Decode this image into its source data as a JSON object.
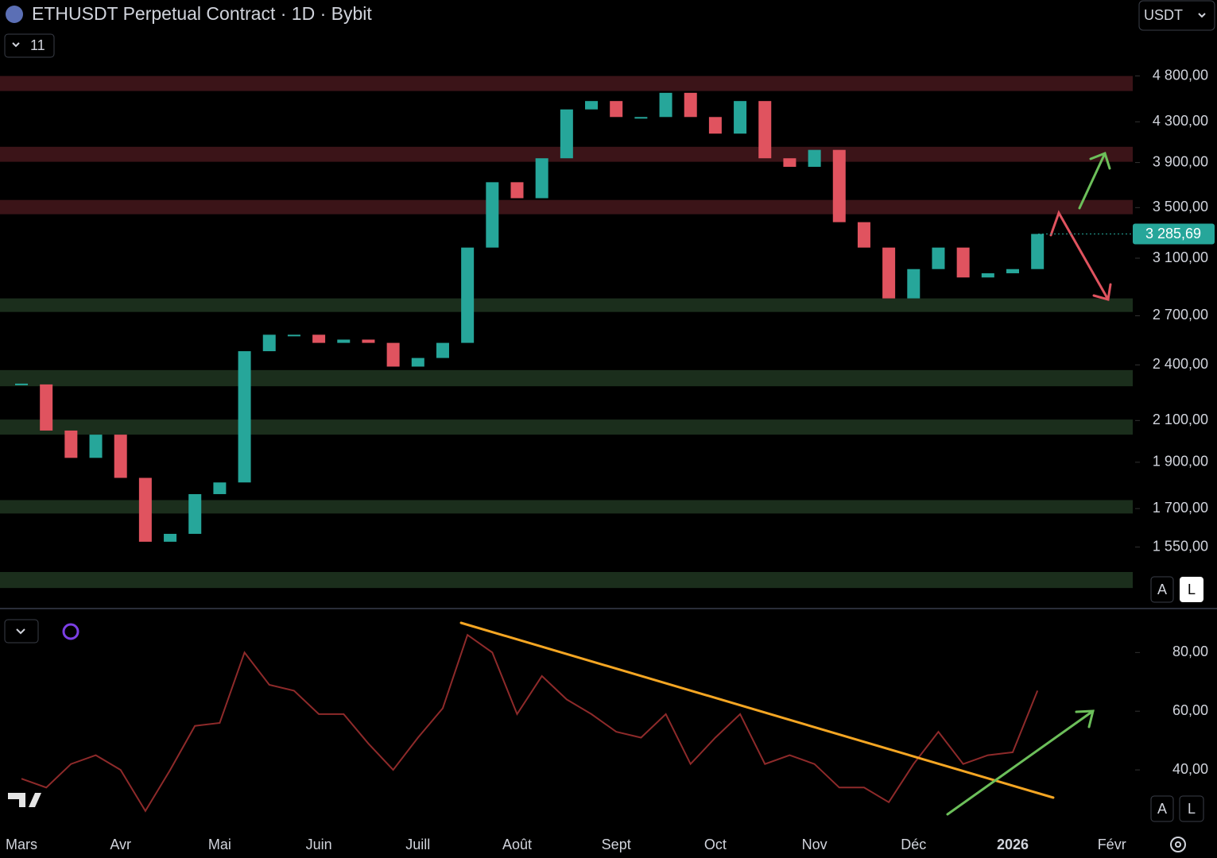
{
  "header": {
    "title": "ETHUSDT Perpetual Contract · 1D · Bybit",
    "indicator_count": "11",
    "currency": "USDT"
  },
  "controls": {
    "scale_buttons": [
      "A",
      "L"
    ]
  },
  "chart_data": {
    "type": "candlestick",
    "categories": [
      "Mars",
      "Avr",
      "Mai",
      "Juin",
      "Juill",
      "Août",
      "Sept",
      "Oct",
      "Nov",
      "Déc",
      "2026",
      "Févr"
    ],
    "up_color": "#26a69a",
    "down_color": "#e0535f",
    "price": {
      "values": [
        2290,
        2050,
        1920,
        2030,
        1830,
        1570,
        1600,
        1760,
        1810,
        2480,
        2580,
        2580,
        2530,
        2550,
        2530,
        2390,
        2440,
        2530,
        3180,
        3720,
        3580,
        3940,
        4430,
        4520,
        4350,
        4350,
        4610,
        4350,
        4180,
        4520,
        3940,
        3860,
        4020,
        3380,
        3180,
        2815,
        3020,
        3180,
        2960,
        2990,
        3020,
        3285.69
      ],
      "ylim": [
        1340,
        5760
      ],
      "log_scale": true,
      "yticks": [
        {
          "value": 4800,
          "label": "4 800,00"
        },
        {
          "value": 4300,
          "label": "4 300,00"
        },
        {
          "value": 3900,
          "label": "3 900,00"
        },
        {
          "value": 3500,
          "label": "3 500,00"
        },
        {
          "value": 3100,
          "label": "3 100,00"
        },
        {
          "value": 2700,
          "label": "2 700,00"
        },
        {
          "value": 2400,
          "label": "2 400,00"
        },
        {
          "value": 2100,
          "label": "2 100,00"
        },
        {
          "value": 1900,
          "label": "1 900,00"
        },
        {
          "value": 1700,
          "label": "1 700,00"
        },
        {
          "value": 1550,
          "label": "1 550,00"
        }
      ],
      "last_price": {
        "value": 3285.69,
        "label": "3 285,69"
      },
      "zones": [
        {
          "low": 4630,
          "high": 4800,
          "color": "#3b1418"
        },
        {
          "low": 3907,
          "high": 4050,
          "color": "#3b1418"
        },
        {
          "low": 3445,
          "high": 3565,
          "color": "#3b1418"
        },
        {
          "low": 2725,
          "high": 2815,
          "color": "#1b2e1c"
        },
        {
          "low": 2280,
          "high": 2370,
          "color": "#1b2e1c"
        },
        {
          "low": 2030,
          "high": 2105,
          "color": "#1b2e1c"
        },
        {
          "low": 1680,
          "high": 1735,
          "color": "#1b2e1c"
        },
        {
          "low": 1405,
          "high": 1460,
          "color": "#1b2e1c"
        }
      ]
    },
    "rsi": {
      "values": [
        37,
        34,
        42,
        45,
        40,
        26,
        40,
        55,
        56,
        80,
        69,
        67,
        59,
        59,
        49,
        40,
        51,
        61,
        86,
        80,
        59,
        72,
        64,
        59,
        53,
        51,
        59,
        42,
        51,
        59,
        42,
        45,
        42,
        34,
        34,
        29,
        42,
        53,
        42,
        45,
        46,
        67
      ],
      "color": "#8e2a2a",
      "ylim": [
        20,
        92
      ],
      "yticks": [
        {
          "value": 80,
          "label": "80,00"
        },
        {
          "value": 60,
          "label": "60,00"
        },
        {
          "value": 40,
          "label": "40,00"
        }
      ]
    }
  }
}
